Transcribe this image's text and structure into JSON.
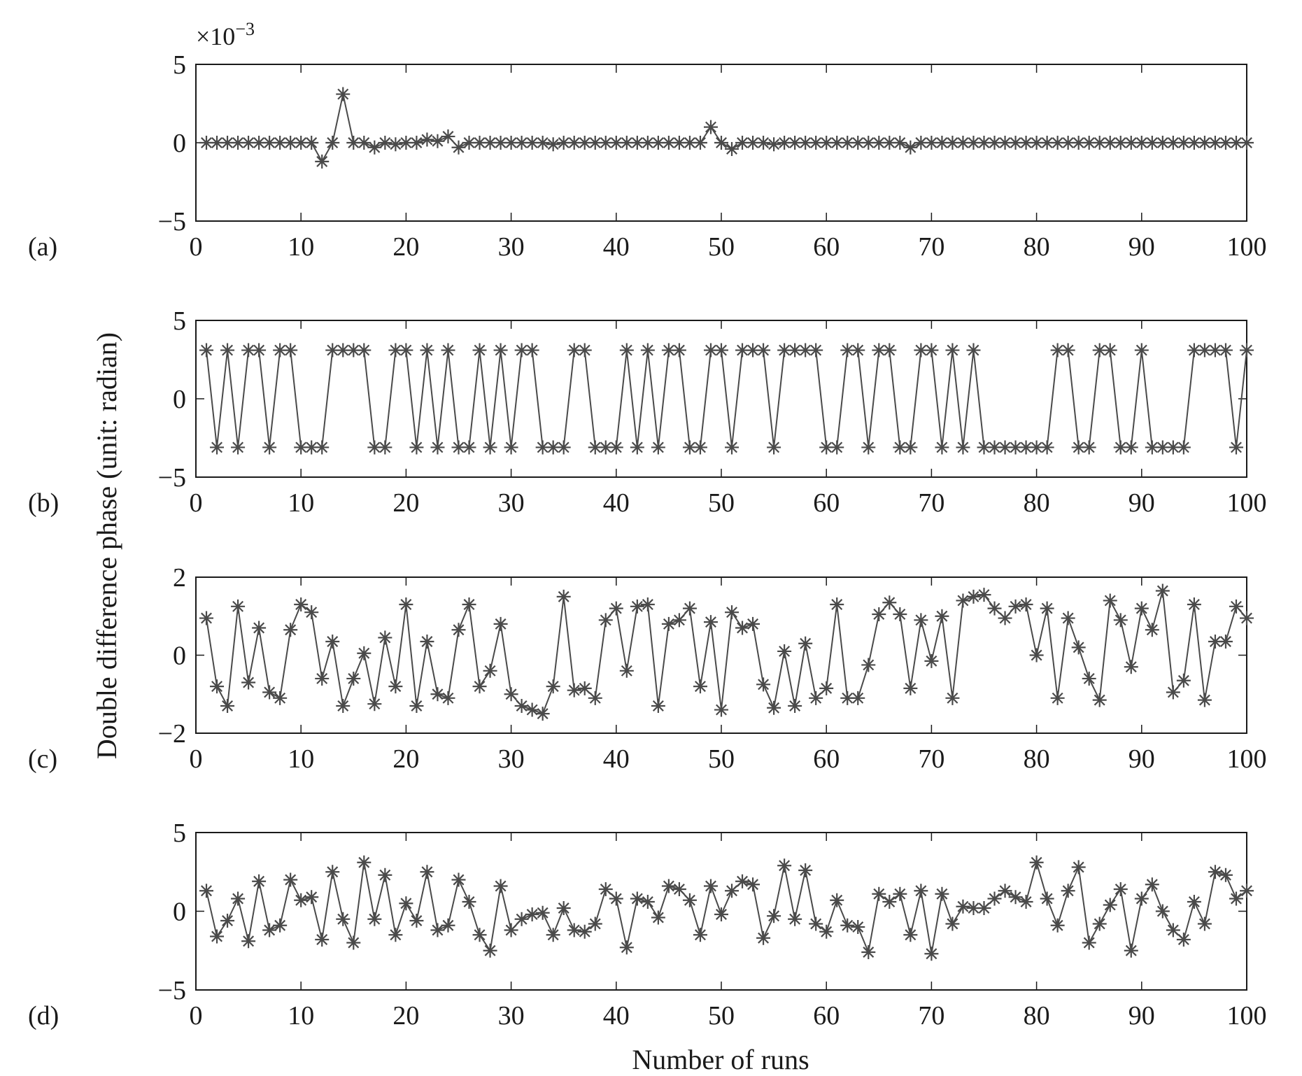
{
  "ylabel": "Double difference phase (unit: radian)",
  "xlabel": "Number of runs",
  "chart_data": [
    {
      "type": "line",
      "panel_label": "(a)",
      "exponent_label": "×10",
      "exponent_sup": "−3",
      "xlim": [
        0,
        100
      ],
      "ylim": [
        -5,
        5
      ],
      "xticks": [
        "0",
        "10",
        "20",
        "30",
        "40",
        "50",
        "60",
        "70",
        "80",
        "90",
        "100"
      ],
      "yticks": [
        {
          "value": 5,
          "label": "5"
        },
        {
          "value": 0,
          "label": "0"
        },
        {
          "value": -5,
          "label": "−5"
        }
      ],
      "x": [
        1,
        2,
        3,
        4,
        5,
        6,
        7,
        8,
        9,
        10,
        11,
        12,
        13,
        14,
        15,
        16,
        17,
        18,
        19,
        20,
        21,
        22,
        23,
        24,
        25,
        26,
        27,
        28,
        29,
        30,
        31,
        32,
        33,
        34,
        35,
        36,
        37,
        38,
        39,
        40,
        41,
        42,
        43,
        44,
        45,
        46,
        47,
        48,
        49,
        50,
        51,
        52,
        53,
        54,
        55,
        56,
        57,
        58,
        59,
        60,
        61,
        62,
        63,
        64,
        65,
        66,
        67,
        68,
        69,
        70,
        71,
        72,
        73,
        74,
        75,
        76,
        77,
        78,
        79,
        80,
        81,
        82,
        83,
        84,
        85,
        86,
        87,
        88,
        89,
        90,
        91,
        92,
        93,
        94,
        95,
        96,
        97,
        98,
        99,
        100
      ],
      "y": [
        0,
        0,
        0,
        0,
        0,
        0,
        0,
        0,
        0,
        0,
        0,
        -1.2,
        0,
        3.1,
        0,
        0,
        -0.3,
        0,
        -0.1,
        0,
        0,
        0.2,
        0.1,
        0.4,
        -0.3,
        0,
        0,
        0,
        0,
        0,
        0,
        0,
        0,
        -0.1,
        0,
        0,
        0,
        0,
        0,
        0,
        0,
        0,
        0,
        0,
        0,
        0,
        0,
        0,
        1.0,
        0,
        -0.4,
        0,
        0,
        0,
        -0.1,
        0,
        0,
        0,
        0,
        0,
        0,
        0,
        0,
        0,
        0,
        0,
        0,
        -0.3,
        0,
        0,
        0,
        0,
        0,
        0,
        0,
        0,
        0,
        0,
        0,
        0,
        0,
        0,
        0,
        0,
        0,
        0,
        0,
        0,
        0,
        0,
        0,
        0,
        0,
        0,
        0,
        0,
        0,
        0,
        0,
        0
      ]
    },
    {
      "type": "line",
      "panel_label": "(b)",
      "xlim": [
        0,
        100
      ],
      "ylim": [
        -5,
        5
      ],
      "xticks": [
        "0",
        "10",
        "20",
        "30",
        "40",
        "50",
        "60",
        "70",
        "80",
        "90",
        "100"
      ],
      "yticks": [
        {
          "value": 5,
          "label": "5"
        },
        {
          "value": 0,
          "label": "0"
        },
        {
          "value": -5,
          "label": "−5"
        }
      ],
      "x": [
        1,
        2,
        3,
        4,
        5,
        6,
        7,
        8,
        9,
        10,
        11,
        12,
        13,
        14,
        15,
        16,
        17,
        18,
        19,
        20,
        21,
        22,
        23,
        24,
        25,
        26,
        27,
        28,
        29,
        30,
        31,
        32,
        33,
        34,
        35,
        36,
        37,
        38,
        39,
        40,
        41,
        42,
        43,
        44,
        45,
        46,
        47,
        48,
        49,
        50,
        51,
        52,
        53,
        54,
        55,
        56,
        57,
        58,
        59,
        60,
        61,
        62,
        63,
        64,
        65,
        66,
        67,
        68,
        69,
        70,
        71,
        72,
        73,
        74,
        75,
        76,
        77,
        78,
        79,
        80,
        81,
        82,
        83,
        84,
        85,
        86,
        87,
        88,
        89,
        90,
        91,
        92,
        93,
        94,
        95,
        96,
        97,
        98,
        99,
        100
      ],
      "y": [
        3.1,
        -3.1,
        3.1,
        -3.1,
        3.1,
        3.1,
        -3.1,
        3.1,
        3.1,
        -3.1,
        -3.1,
        -3.1,
        3.1,
        3.1,
        3.1,
        3.1,
        -3.1,
        -3.1,
        3.1,
        3.1,
        -3.1,
        3.1,
        -3.1,
        3.1,
        -3.1,
        -3.1,
        3.1,
        -3.1,
        3.1,
        -3.1,
        3.1,
        3.1,
        -3.1,
        -3.1,
        -3.1,
        3.1,
        3.1,
        -3.1,
        -3.1,
        -3.1,
        3.1,
        -3.1,
        3.1,
        -3.1,
        3.1,
        3.1,
        -3.1,
        -3.1,
        3.1,
        3.1,
        -3.1,
        3.1,
        3.1,
        3.1,
        -3.1,
        3.1,
        3.1,
        3.1,
        3.1,
        -3.1,
        -3.1,
        3.1,
        3.1,
        -3.1,
        3.1,
        3.1,
        -3.1,
        -3.1,
        3.1,
        3.1,
        -3.1,
        3.1,
        -3.1,
        3.1,
        -3.1,
        -3.1,
        -3.1,
        -3.1,
        -3.1,
        -3.1,
        -3.1,
        3.1,
        3.1,
        -3.1,
        -3.1,
        3.1,
        3.1,
        -3.1,
        -3.1,
        3.1,
        -3.1,
        -3.1,
        -3.1,
        -3.1,
        3.1,
        3.1,
        3.1,
        3.1,
        -3.1,
        3.1
      ]
    },
    {
      "type": "line",
      "panel_label": "(c)",
      "xlim": [
        0,
        100
      ],
      "ylim": [
        -2,
        2
      ],
      "xticks": [
        "0",
        "10",
        "20",
        "30",
        "40",
        "50",
        "60",
        "70",
        "80",
        "90",
        "100"
      ],
      "yticks": [
        {
          "value": 2,
          "label": "2"
        },
        {
          "value": 0,
          "label": "0"
        },
        {
          "value": -2,
          "label": "−2"
        }
      ],
      "x": [
        1,
        2,
        3,
        4,
        5,
        6,
        7,
        8,
        9,
        10,
        11,
        12,
        13,
        14,
        15,
        16,
        17,
        18,
        19,
        20,
        21,
        22,
        23,
        24,
        25,
        26,
        27,
        28,
        29,
        30,
        31,
        32,
        33,
        34,
        35,
        36,
        37,
        38,
        39,
        40,
        41,
        42,
        43,
        44,
        45,
        46,
        47,
        48,
        49,
        50,
        51,
        52,
        53,
        54,
        55,
        56,
        57,
        58,
        59,
        60,
        61,
        62,
        63,
        64,
        65,
        66,
        67,
        68,
        69,
        70,
        71,
        72,
        73,
        74,
        75,
        76,
        77,
        78,
        79,
        80,
        81,
        82,
        83,
        84,
        85,
        86,
        87,
        88,
        89,
        90,
        91,
        92,
        93,
        94,
        95,
        96,
        97,
        98,
        99,
        100
      ],
      "y": [
        0.95,
        -0.8,
        -1.3,
        1.25,
        -0.7,
        0.7,
        -0.95,
        -1.1,
        0.65,
        1.3,
        1.1,
        -0.6,
        0.35,
        -1.3,
        -0.6,
        0.05,
        -1.25,
        0.45,
        -0.8,
        1.3,
        -1.3,
        0.35,
        -1.0,
        -1.1,
        0.65,
        1.3,
        -0.8,
        -0.4,
        0.8,
        -1.0,
        -1.3,
        -1.4,
        -1.5,
        -0.8,
        1.5,
        -0.9,
        -0.85,
        -1.1,
        0.9,
        1.2,
        -0.4,
        1.25,
        1.3,
        -1.3,
        0.8,
        0.9,
        1.2,
        -0.8,
        0.85,
        -1.4,
        1.1,
        0.7,
        0.8,
        -0.75,
        -1.35,
        0.1,
        -1.3,
        0.3,
        -1.1,
        -0.85,
        1.3,
        -1.1,
        -1.1,
        -0.25,
        1.05,
        1.35,
        1.05,
        -0.85,
        0.9,
        -0.15,
        1.0,
        -1.1,
        1.4,
        1.5,
        1.55,
        1.2,
        0.95,
        1.25,
        1.3,
        0.0,
        1.2,
        -1.1,
        0.95,
        0.2,
        -0.6,
        -1.15,
        1.4,
        0.9,
        -0.3,
        1.2,
        0.65,
        1.65,
        -0.95,
        -0.65,
        1.3,
        -1.15,
        0.35,
        0.35,
        1.25,
        0.95
      ]
    },
    {
      "type": "line",
      "panel_label": "(d)",
      "xlim": [
        0,
        100
      ],
      "ylim": [
        -5,
        5
      ],
      "xticks": [
        "0",
        "10",
        "20",
        "30",
        "40",
        "50",
        "60",
        "70",
        "80",
        "90",
        "100"
      ],
      "yticks": [
        {
          "value": 5,
          "label": "5"
        },
        {
          "value": 0,
          "label": "0"
        },
        {
          "value": -5,
          "label": "−5"
        }
      ],
      "x": [
        1,
        2,
        3,
        4,
        5,
        6,
        7,
        8,
        9,
        10,
        11,
        12,
        13,
        14,
        15,
        16,
        17,
        18,
        19,
        20,
        21,
        22,
        23,
        24,
        25,
        26,
        27,
        28,
        29,
        30,
        31,
        32,
        33,
        34,
        35,
        36,
        37,
        38,
        39,
        40,
        41,
        42,
        43,
        44,
        45,
        46,
        47,
        48,
        49,
        50,
        51,
        52,
        53,
        54,
        55,
        56,
        57,
        58,
        59,
        60,
        61,
        62,
        63,
        64,
        65,
        66,
        67,
        68,
        69,
        70,
        71,
        72,
        73,
        74,
        75,
        76,
        77,
        78,
        79,
        80,
        81,
        82,
        83,
        84,
        85,
        86,
        87,
        88,
        89,
        90,
        91,
        92,
        93,
        94,
        95,
        96,
        97,
        98,
        99,
        100
      ],
      "y": [
        1.3,
        -1.6,
        -0.6,
        0.8,
        -1.9,
        1.9,
        -1.2,
        -0.9,
        2.0,
        0.7,
        0.9,
        -1.8,
        2.5,
        -0.5,
        -2.0,
        3.1,
        -0.5,
        2.3,
        -1.5,
        0.5,
        -0.6,
        2.5,
        -1.2,
        -0.9,
        2.0,
        0.6,
        -1.5,
        -2.5,
        1.6,
        -1.2,
        -0.5,
        -0.2,
        -0.1,
        -1.5,
        0.2,
        -1.2,
        -1.3,
        -0.8,
        1.4,
        0.8,
        -2.3,
        0.8,
        0.6,
        -0.4,
        1.6,
        1.4,
        0.7,
        -1.5,
        1.6,
        -0.2,
        1.3,
        1.9,
        1.7,
        -1.7,
        -0.3,
        2.9,
        -0.5,
        2.6,
        -0.8,
        -1.3,
        0.7,
        -0.9,
        -1.0,
        -2.6,
        1.1,
        0.6,
        1.1,
        -1.5,
        1.3,
        -2.7,
        1.1,
        -0.8,
        0.3,
        0.2,
        0.2,
        0.8,
        1.3,
        0.9,
        0.6,
        3.1,
        0.8,
        -0.9,
        1.3,
        2.8,
        -2.0,
        -0.8,
        0.4,
        1.4,
        -2.5,
        0.8,
        1.7,
        0.0,
        -1.2,
        -1.8,
        0.6,
        -0.8,
        2.5,
        2.3,
        0.8,
        1.3
      ]
    }
  ]
}
